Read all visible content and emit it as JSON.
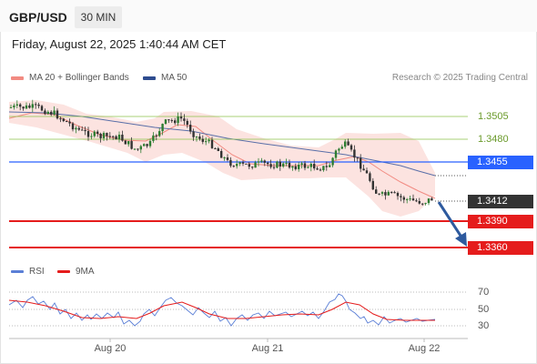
{
  "header": {
    "pair": "GBP/USD",
    "timeframe": "30 MIN"
  },
  "datetime": "Friday, August 22, 2025 1:40:44 AM CET",
  "legend": {
    "ma20_label": "MA 20 + Bollinger Bands",
    "ma20_color": "#f28b82",
    "ma50_label": "MA 50",
    "ma50_color": "#2e4c8f"
  },
  "research": "Research © 2025 Trading Central",
  "price_levels": [
    {
      "value": "1.3505",
      "kind": "resistance",
      "color": "#8bc34a"
    },
    {
      "value": "1.3480",
      "kind": "resistance",
      "color": "#8bc34a"
    },
    {
      "value": "1.3455",
      "kind": "pivot",
      "color": "#2962ff"
    },
    {
      "value": "1.3412",
      "kind": "last",
      "color": "#333333"
    },
    {
      "value": "1.3390",
      "kind": "target",
      "color": "#e51c1c"
    },
    {
      "value": "1.3360",
      "kind": "target",
      "color": "#e51c1c"
    }
  ],
  "rsi": {
    "rsi_label": "RSI",
    "rsi_color": "#5b7fd6",
    "ma_label": "9MA",
    "ma_color": "#e51c1c",
    "levels": [
      "70",
      "50",
      "30"
    ]
  },
  "x_axis": [
    "Aug 20",
    "Aug 21",
    "Aug 22"
  ],
  "chart_data": {
    "type": "candlestick",
    "series": [
      {
        "name": "MA 20 + Bollinger Bands",
        "approx_values": [
          1.3508,
          1.3505,
          1.349,
          1.3482,
          1.3478,
          1.3483,
          1.3476,
          1.3468,
          1.346,
          1.3455,
          1.345,
          1.3446,
          1.3448,
          1.344,
          1.3425,
          1.3415
        ]
      },
      {
        "name": "MA 50",
        "approx_values": [
          1.351,
          1.3506,
          1.35,
          1.3496,
          1.349,
          1.3484,
          1.3478,
          1.3472,
          1.3466,
          1.3463,
          1.346,
          1.3455,
          1.3448,
          1.344
        ]
      }
    ],
    "last_price": 1.3412,
    "projection": "down toward 1.3360",
    "y_levels": [
      1.3505,
      1.348,
      1.3455,
      1.3412,
      1.339,
      1.336
    ],
    "rsi_levels": [
      70,
      50,
      30
    ]
  }
}
